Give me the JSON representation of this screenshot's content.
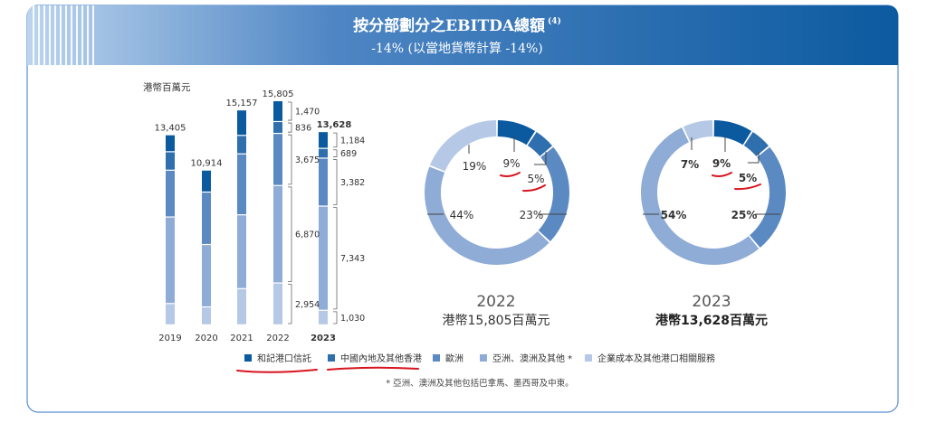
{
  "header": {
    "title": "按分部劃分之EBITDA總額",
    "title_note": "(4)",
    "subtitle": "-14% (以當地貨幣計算 -14%)"
  },
  "colors": {
    "trust": "#0b5aa0",
    "mainland_hk": "#2f6fae",
    "europe": "#5b8ac3",
    "asia_aus": "#8eacd6",
    "corporate": "#b5c9e6",
    "header_dark": "#0c5aa0",
    "header_light": "#a9c6e8",
    "red_annotation": "#d7141e",
    "frame_border": "#5b8ed0"
  },
  "chart_data": [
    {
      "type": "bar",
      "unit_label": "港幣百萬元",
      "categories": [
        "2019",
        "2020",
        "2021",
        "2022",
        "2023"
      ],
      "totals": [
        "13,405",
        "10,914",
        "15,157",
        "15,805",
        "13,628"
      ],
      "total_values": [
        13405,
        10914,
        15157,
        15805,
        13628
      ],
      "series": [
        {
          "name": "和記港口信託",
          "values": [
            1200,
            1550,
            1800,
            1470,
            1184
          ]
        },
        {
          "name": "中國內地及其他香港",
          "values": [
            1300,
            0,
            1300,
            836,
            689
          ]
        },
        {
          "name": "歐洲",
          "values": [
            3300,
            3700,
            4300,
            3675,
            3382
          ]
        },
        {
          "name": "亞洲、澳洲及其他 *",
          "values": [
            6100,
            4400,
            5200,
            6870,
            7343
          ]
        },
        {
          "name": "企業成本及其他港口相關服務",
          "values": [
            1505,
            1264,
            2557,
            2954,
            1030
          ]
        }
      ],
      "segment_labels": {
        "2022": [
          "1,470",
          "836",
          "3,675",
          "6,870",
          "2,954"
        ],
        "2023": [
          "1,184",
          "689",
          "3,382",
          "7,343",
          "1,030"
        ]
      }
    },
    {
      "type": "pie",
      "donut": true,
      "year": "2022",
      "caption": "港幣15,805百萬元",
      "values": [
        9,
        5,
        23,
        44,
        19
      ],
      "labels": [
        "9%",
        "5%",
        "23%",
        "44%",
        "19%"
      ]
    },
    {
      "type": "pie",
      "donut": true,
      "year": "2023",
      "caption": "港幣13,628百萬元",
      "values": [
        9,
        5,
        25,
        54,
        7
      ],
      "labels": [
        "9%",
        "5%",
        "25%",
        "54%",
        "7%"
      ]
    }
  ],
  "legend": {
    "items": [
      {
        "label": "和記港口信託"
      },
      {
        "label": "中國內地及其他香港"
      },
      {
        "label": "歐洲"
      },
      {
        "label": "亞洲、澳洲及其他 *"
      },
      {
        "label": "企業成本及其他港口相關服務"
      }
    ]
  },
  "footnote": "* 亞洲、澳洲及其他包括巴拿馬、墨西哥及中東。"
}
